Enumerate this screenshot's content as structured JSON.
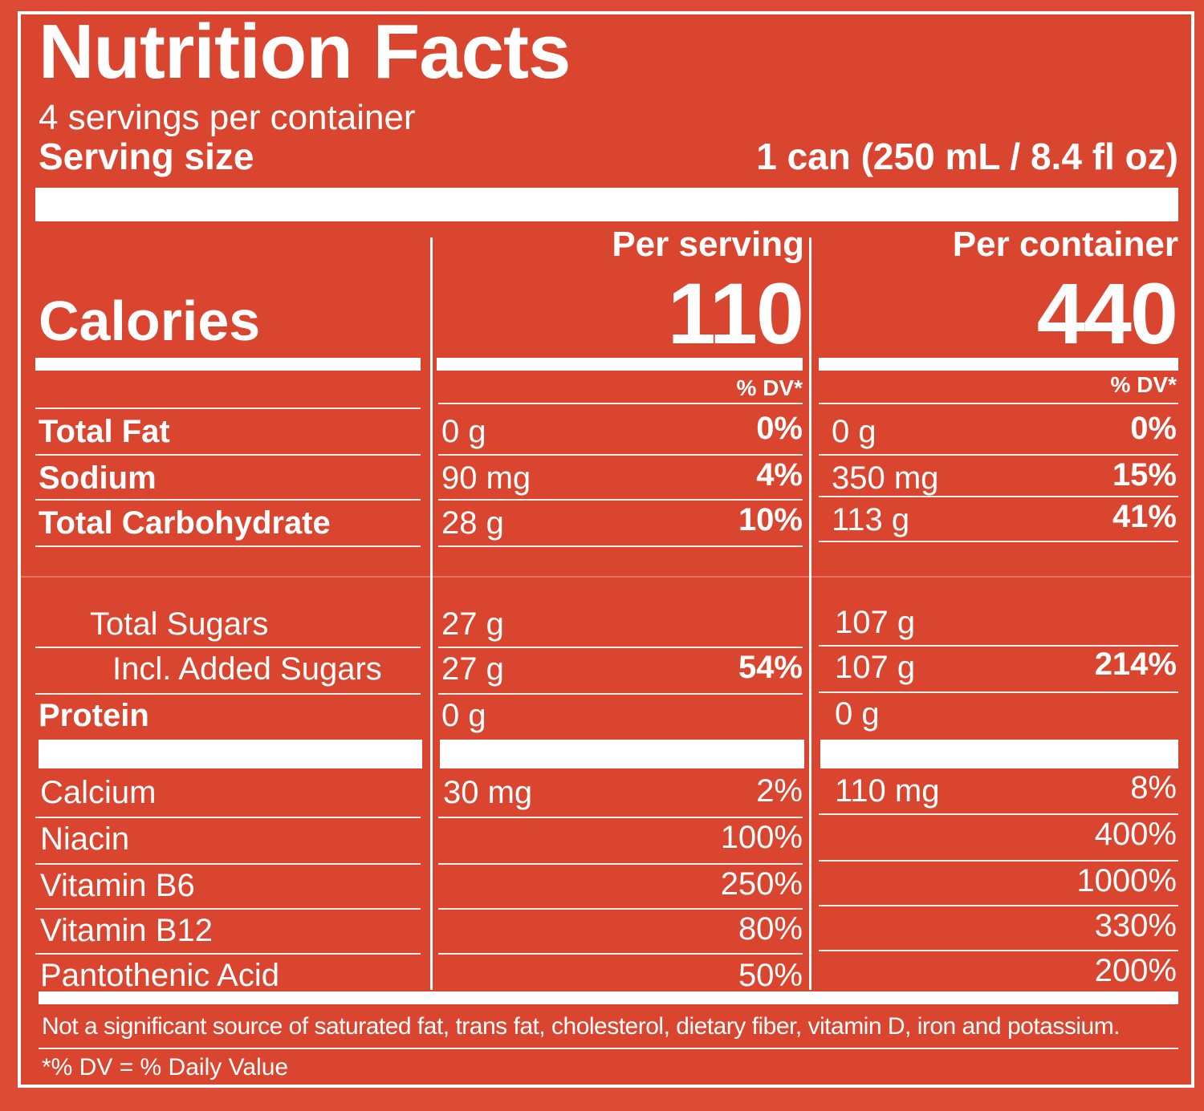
{
  "label": {
    "title": "Nutrition Facts",
    "servings_per_container": "4 servings per container",
    "serving_size_label": "Serving size",
    "serving_size_value": "1 can (250 mL / 8.4 fl oz)",
    "calories_label": "Calories",
    "per_serving_header": "Per serving",
    "per_container_header": "Per container",
    "calories_per_serving": "110",
    "calories_per_container": "440",
    "dv_header": "% DV*",
    "nutrients": [
      {
        "name": "Total Fat",
        "serving_amount": "0 g",
        "serving_dv": "0%",
        "container_amount": "0 g",
        "container_dv": "0%"
      },
      {
        "name": "Sodium",
        "serving_amount": "90 mg",
        "serving_dv": "4%",
        "container_amount": "350 mg",
        "container_dv": "15%"
      },
      {
        "name": "Total Carbohydrate",
        "serving_amount": "28 g",
        "serving_dv": "10%",
        "container_amount": "113 g",
        "container_dv": "41%"
      },
      {
        "name": "Total Sugars",
        "serving_amount": "27 g",
        "serving_dv": "",
        "container_amount": "107 g",
        "container_dv": ""
      },
      {
        "name": "Incl. Added Sugars",
        "serving_amount": "27 g",
        "serving_dv": "54%",
        "container_amount": "107 g",
        "container_dv": "214%"
      },
      {
        "name": "Protein",
        "serving_amount": "0 g",
        "serving_dv": "",
        "container_amount": "0 g",
        "container_dv": ""
      }
    ],
    "vitamins": [
      {
        "name": "Calcium",
        "serving_amount": "30 mg",
        "serving_dv": "2%",
        "container_amount": "110 mg",
        "container_dv": "8%"
      },
      {
        "name": "Niacin",
        "serving_amount": "",
        "serving_dv": "100%",
        "container_amount": "",
        "container_dv": "400%"
      },
      {
        "name": "Vitamin B6",
        "serving_amount": "",
        "serving_dv": "250%",
        "container_amount": "",
        "container_dv": "1000%"
      },
      {
        "name": "Vitamin B12",
        "serving_amount": "",
        "serving_dv": "80%",
        "container_amount": "",
        "container_dv": "330%"
      },
      {
        "name": "Pantothenic Acid",
        "serving_amount": "",
        "serving_dv": "50%",
        "container_amount": "",
        "container_dv": "200%"
      }
    ],
    "footnote_not_significant": "Not a significant source of saturated fat, trans fat, cholesterol, dietary fiber, vitamin D, iron and potassium.",
    "footnote_dv": "*% DV = % Daily Value"
  },
  "colors": {
    "background": "#dd4a35",
    "text": "#ffffff"
  }
}
